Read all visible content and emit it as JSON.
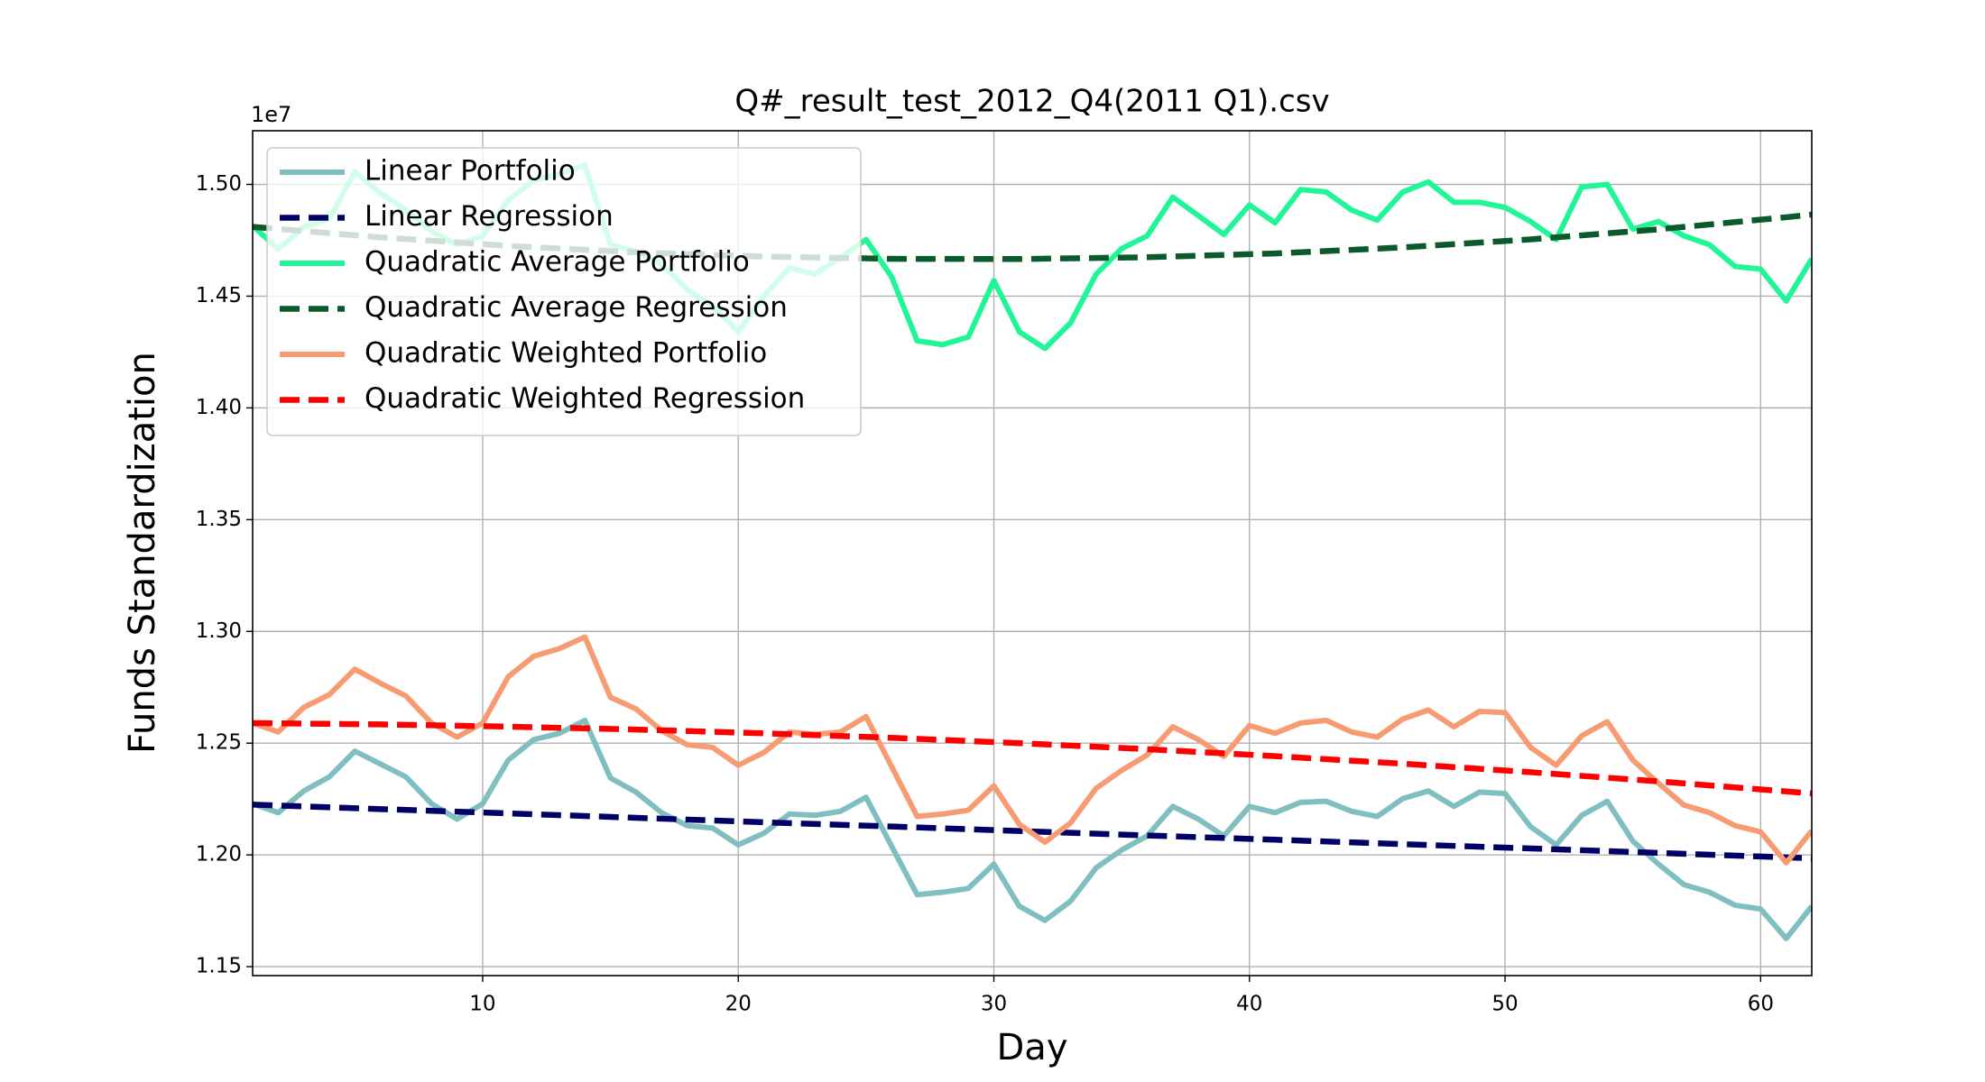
{
  "chart_data": {
    "type": "line",
    "title": "Q#_result_test_2012_Q4(2011 Q1).csv",
    "xlabel": "Day",
    "ylabel": "Funds Standardization",
    "y_offset_label": "1e7",
    "x": [
      1,
      2,
      3,
      4,
      5,
      6,
      7,
      8,
      9,
      10,
      11,
      12,
      13,
      14,
      15,
      16,
      17,
      18,
      19,
      20,
      21,
      22,
      23,
      24,
      25,
      26,
      27,
      28,
      29,
      30,
      31,
      32,
      33,
      34,
      35,
      36,
      37,
      38,
      39,
      40,
      41,
      42,
      43,
      44,
      45,
      46,
      47,
      48,
      49,
      50,
      51,
      52,
      53,
      54,
      55,
      56,
      57,
      58,
      59,
      60,
      61,
      62
    ],
    "series": [
      {
        "name": "Linear Portfolio",
        "color": "#80bfc0",
        "dashed": false,
        "values": [
          1.2229,
          1.2189,
          1.2286,
          1.2349,
          1.2464,
          1.2407,
          1.2349,
          1.2229,
          1.216,
          1.2229,
          1.2424,
          1.2516,
          1.2544,
          1.2602,
          1.2344,
          1.2281,
          1.2189,
          1.2131,
          1.212,
          1.2045,
          1.2097,
          1.2183,
          1.2177,
          1.2195,
          1.2258,
          1.2039,
          1.1822,
          1.1833,
          1.185,
          1.1959,
          1.177,
          1.1707,
          1.1793,
          1.1942,
          1.2022,
          1.2085,
          1.2217,
          1.216,
          1.2085,
          1.2217,
          1.2189,
          1.2235,
          1.224,
          1.2195,
          1.2172,
          1.2252,
          1.2286,
          1.2217,
          1.2281,
          1.2275,
          1.2126,
          1.2045,
          1.2177,
          1.224,
          1.2062,
          1.1959,
          1.1867,
          1.1833,
          1.1775,
          1.1758,
          1.1626,
          1.177
        ]
      },
      {
        "name": "Linear Regression",
        "color": "#000066",
        "dashed": true,
        "x": [
          1,
          6,
          11,
          16,
          21,
          26,
          31,
          36,
          41,
          46,
          51,
          56,
          61,
          62
        ],
        "values": [
          1.2225,
          1.2205,
          1.2186,
          1.2166,
          1.2146,
          1.2127,
          1.2107,
          1.2087,
          1.2068,
          1.2048,
          1.2029,
          1.2009,
          1.1989,
          1.1985
        ]
      },
      {
        "name": "Quadratic Average Portfolio",
        "color": "#20f598",
        "dashed": false,
        "values": [
          1.4816,
          1.471,
          1.481,
          1.4845,
          1.5057,
          1.496,
          1.4885,
          1.479,
          1.473,
          1.477,
          1.493,
          1.5017,
          1.5046,
          1.5086,
          1.473,
          1.47,
          1.4644,
          1.453,
          1.4455,
          1.434,
          1.45,
          1.4627,
          1.4598,
          1.4673,
          1.4753,
          1.4587,
          1.43,
          1.4283,
          1.4317,
          1.457,
          1.434,
          1.4266,
          1.438,
          1.4598,
          1.4713,
          1.477,
          1.4943,
          1.486,
          1.4776,
          1.4908,
          1.4828,
          1.4977,
          1.4966,
          1.4885,
          1.484,
          1.4966,
          1.5011,
          1.492,
          1.492,
          1.4897,
          1.4834,
          1.4753,
          1.4989,
          1.5,
          1.48,
          1.4834,
          1.477,
          1.473,
          1.4633,
          1.4621,
          1.4478,
          1.4667
        ]
      },
      {
        "name": "Quadratic Average Regression",
        "color": "#0b5a2b",
        "dashed": true,
        "x": [
          1,
          6,
          11,
          16,
          21,
          26,
          31,
          36,
          41,
          46,
          51,
          56,
          61,
          62
        ],
        "values": [
          1.481,
          1.4763,
          1.4725,
          1.4696,
          1.4677,
          1.4667,
          1.4666,
          1.4674,
          1.4691,
          1.4718,
          1.4754,
          1.4799,
          1.4853,
          1.4865
        ]
      },
      {
        "name": "Quadratic Weighted Portfolio",
        "color": "#f79c72",
        "dashed": false,
        "values": [
          1.259,
          1.255,
          1.266,
          1.2717,
          1.2831,
          1.2768,
          1.2711,
          1.259,
          1.2527,
          1.259,
          1.2797,
          1.2889,
          1.2923,
          1.2975,
          1.2705,
          1.2653,
          1.2556,
          1.2493,
          1.2481,
          1.2401,
          1.2458,
          1.255,
          1.2539,
          1.255,
          1.2619,
          1.2395,
          1.2172,
          1.2183,
          1.22,
          1.2309,
          1.2137,
          1.2057,
          1.2143,
          1.2298,
          1.2378,
          1.2447,
          1.2573,
          1.2516,
          1.2441,
          1.2579,
          1.2544,
          1.259,
          1.2602,
          1.255,
          1.2527,
          1.2608,
          1.2648,
          1.2573,
          1.2642,
          1.2637,
          1.2481,
          1.2401,
          1.2533,
          1.2596,
          1.2424,
          1.2321,
          1.2223,
          1.2189,
          1.2131,
          1.2103,
          1.1965,
          1.2108
        ]
      },
      {
        "name": "Quadratic Weighted Regression",
        "color": "#ff0000",
        "dashed": true,
        "x": [
          1,
          6,
          11,
          16,
          21,
          26,
          31,
          36,
          41,
          46,
          51,
          56,
          61,
          62
        ],
        "values": [
          1.259,
          1.2584,
          1.2574,
          1.2561,
          1.2544,
          1.2524,
          1.25,
          1.2473,
          1.2442,
          1.2408,
          1.237,
          1.2329,
          1.2284,
          1.2275
        ]
      }
    ],
    "xlim": [
      1,
      62
    ],
    "xticks": [
      10,
      20,
      30,
      40,
      50,
      60
    ],
    "ylim": [
      1.146,
      1.524
    ],
    "yticks": [
      {
        "value": 1.15,
        "label": "1.15"
      },
      {
        "value": 1.2,
        "label": "1.20"
      },
      {
        "value": 1.25,
        "label": "1.25"
      },
      {
        "value": 1.3,
        "label": "1.30"
      },
      {
        "value": 1.35,
        "label": "1.35"
      },
      {
        "value": 1.4,
        "label": "1.40"
      },
      {
        "value": 1.45,
        "label": "1.45"
      },
      {
        "value": 1.5,
        "label": "1.50"
      }
    ],
    "grid": true,
    "legend": "upper left"
  }
}
